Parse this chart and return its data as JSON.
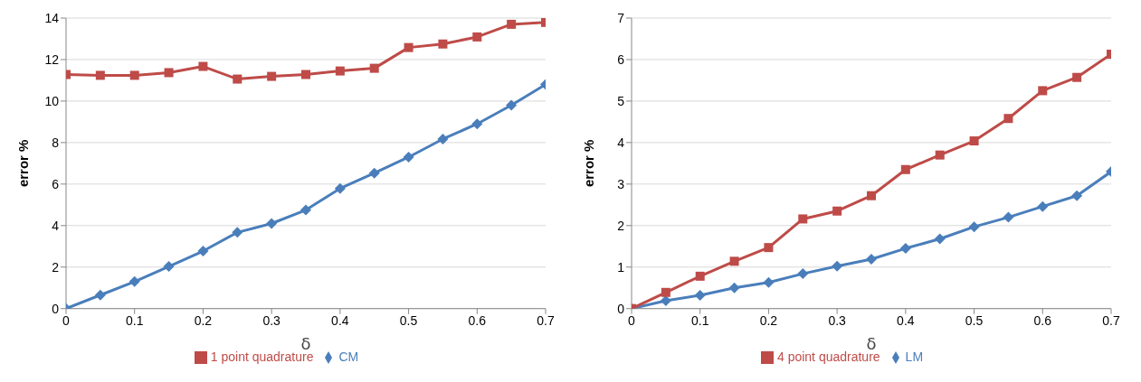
{
  "chart_data": [
    {
      "type": "line",
      "xlabel": "δ",
      "ylabel": "error %",
      "x": [
        0,
        0.05,
        0.1,
        0.15,
        0.2,
        0.25,
        0.3,
        0.35,
        0.4,
        0.45,
        0.5,
        0.55,
        0.6,
        0.65,
        0.7
      ],
      "xlim": [
        0,
        0.7
      ],
      "xticks": [
        0,
        0.1,
        0.2,
        0.3,
        0.4,
        0.5,
        0.6,
        0.7
      ],
      "ylim": [
        0,
        14
      ],
      "yticks": [
        0,
        2,
        4,
        6,
        8,
        10,
        12,
        14
      ],
      "grid": "y",
      "legend": "bottom",
      "series": [
        {
          "name": "CM",
          "color": "#4a7ebb",
          "marker": "diamond",
          "values": [
            0,
            0.65,
            1.3,
            2.03,
            2.77,
            3.67,
            4.1,
            4.75,
            5.79,
            6.53,
            7.3,
            8.17,
            8.9,
            9.8,
            10.8
          ]
        },
        {
          "name": "1 point quadrature",
          "color": "#be4b48",
          "marker": "square",
          "values": [
            11.28,
            11.24,
            11.24,
            11.37,
            11.67,
            11.06,
            11.19,
            11.28,
            11.45,
            11.58,
            12.58,
            12.75,
            13.09,
            13.7,
            13.79
          ]
        }
      ]
    },
    {
      "type": "line",
      "xlabel": "δ",
      "ylabel": "error %",
      "x": [
        0,
        0.05,
        0.1,
        0.15,
        0.2,
        0.25,
        0.3,
        0.35,
        0.4,
        0.45,
        0.5,
        0.55,
        0.6,
        0.65,
        0.7
      ],
      "xlim": [
        0,
        0.7
      ],
      "xticks": [
        0,
        0.1,
        0.2,
        0.3,
        0.4,
        0.5,
        0.6,
        0.7
      ],
      "ylim": [
        0,
        7
      ],
      "yticks": [
        0,
        1,
        2,
        3,
        4,
        5,
        6,
        7
      ],
      "grid": "y",
      "legend": "bottom",
      "series": [
        {
          "name": "LM",
          "color": "#4a7ebb",
          "marker": "diamond",
          "values": [
            0,
            0.19,
            0.32,
            0.5,
            0.63,
            0.84,
            1.02,
            1.19,
            1.45,
            1.68,
            1.97,
            2.2,
            2.46,
            2.72,
            3.3
          ]
        },
        {
          "name": "4 point quadrature",
          "color": "#be4b48",
          "marker": "square",
          "values": [
            0,
            0.39,
            0.78,
            1.14,
            1.47,
            2.16,
            2.35,
            2.72,
            3.35,
            3.7,
            4.04,
            4.58,
            5.25,
            5.57,
            6.13
          ]
        }
      ]
    }
  ]
}
